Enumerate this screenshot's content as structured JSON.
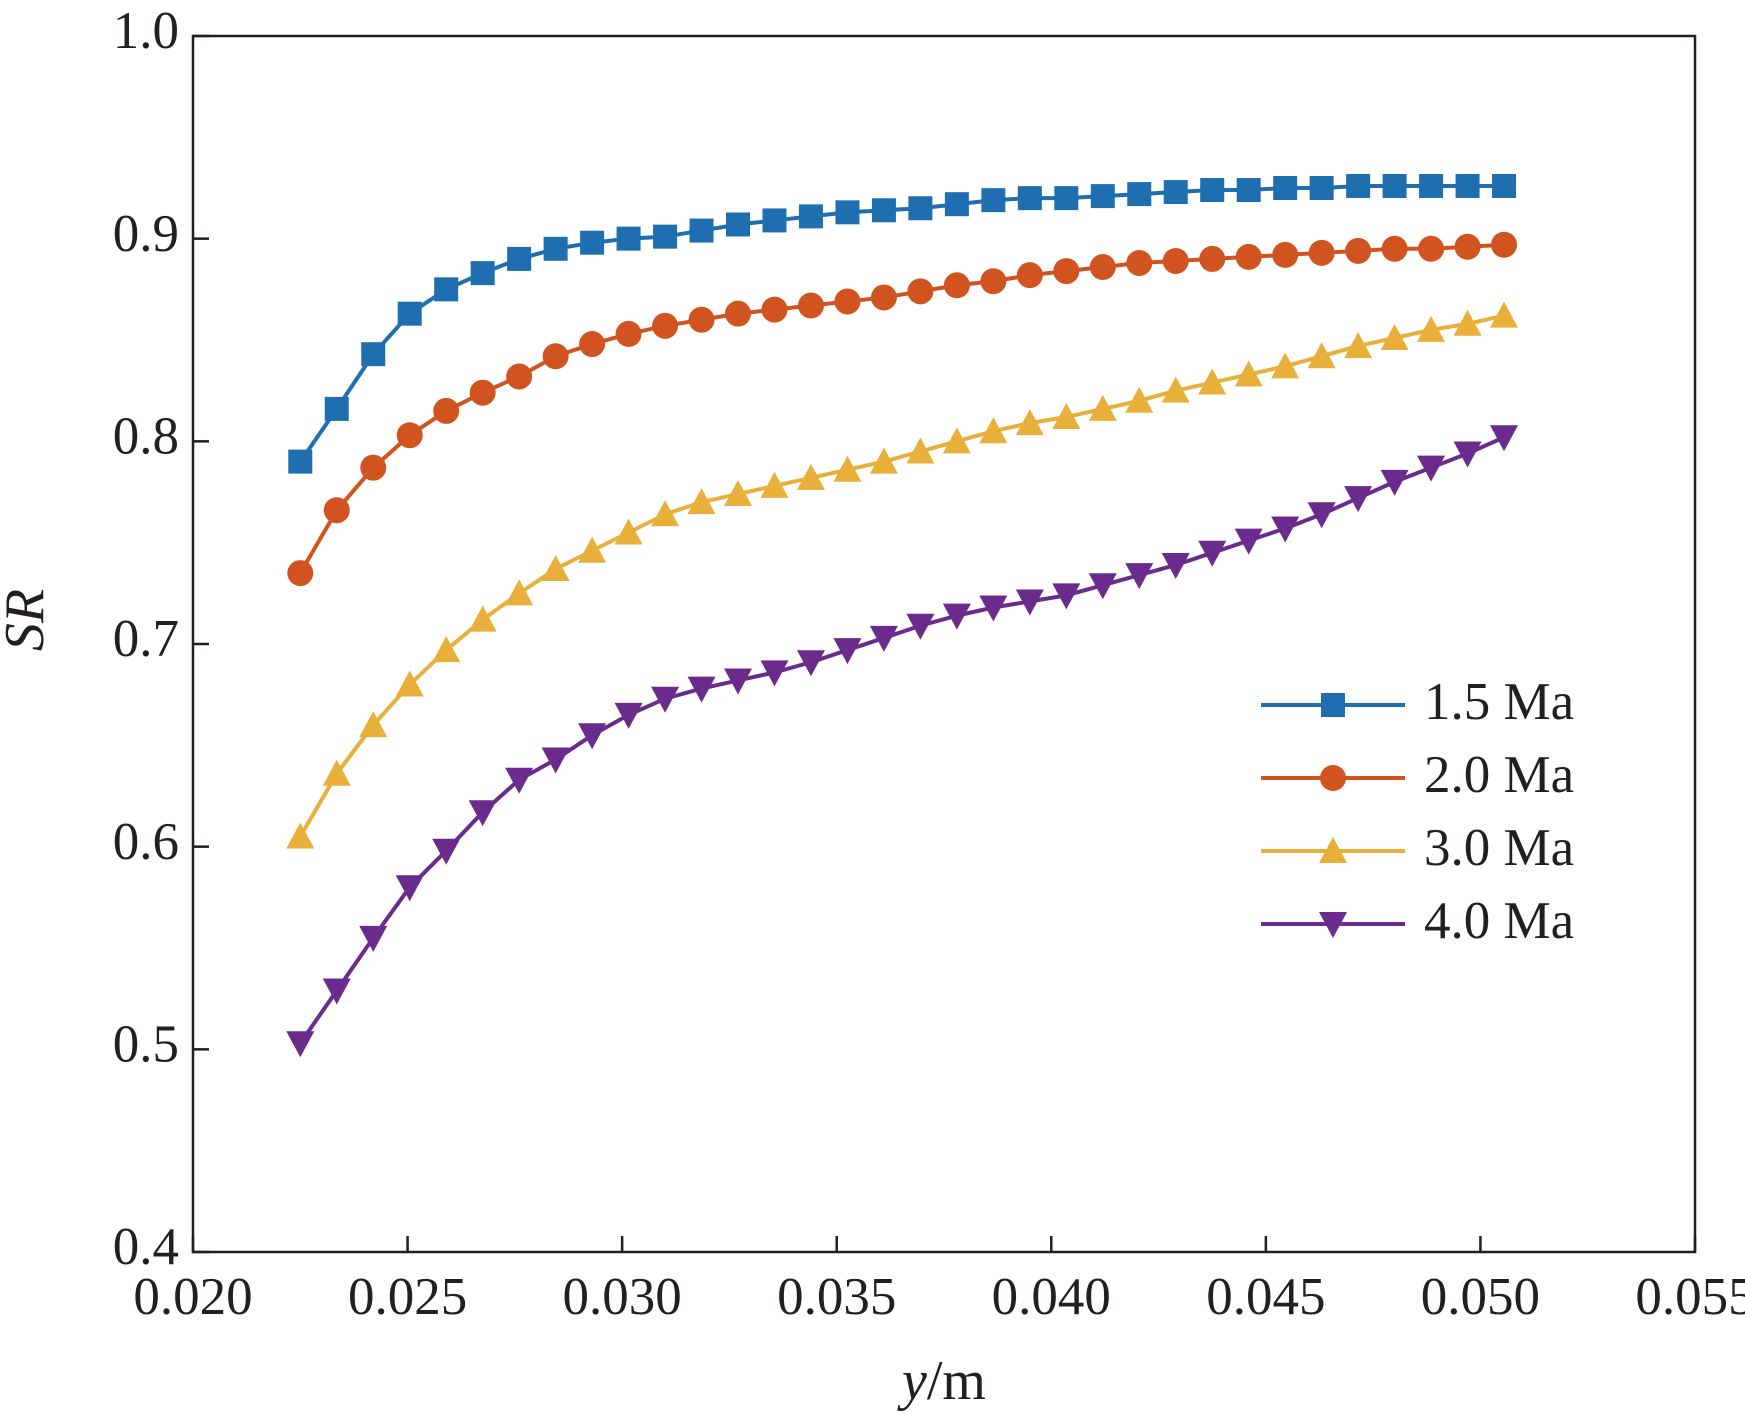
{
  "chart_data": {
    "type": "line",
    "xlabel": "y/m",
    "ylabel": "SR",
    "xlim": [
      0.02,
      0.055
    ],
    "ylim": [
      0.4,
      1.0
    ],
    "xticks": [
      {
        "value": 0.02,
        "label": "0.020"
      },
      0.025,
      {
        "value": 0.03,
        "label": "0.030"
      },
      0.035,
      {
        "value": 0.04,
        "label": "0.040"
      },
      0.045,
      {
        "value": 0.05,
        "label": "0.050"
      },
      0.055
    ],
    "yticks": [
      0.4,
      0.5,
      0.6,
      0.7,
      0.8,
      0.9,
      {
        "value": 1.0,
        "label": "1.0"
      }
    ],
    "legend": "right",
    "x": [
      0.0225,
      0.02335,
      0.0242,
      0.02505,
      0.0259,
      0.02675,
      0.0276,
      0.02845,
      0.0293,
      0.03015,
      0.031,
      0.03185,
      0.0327,
      0.03355,
      0.0344,
      0.03525,
      0.0361,
      0.03695,
      0.0378,
      0.03865,
      0.0395,
      0.04035,
      0.0412,
      0.04205,
      0.0429,
      0.04375,
      0.0446,
      0.04545,
      0.0463,
      0.04715,
      0.048,
      0.04885,
      0.0497,
      0.05055
    ],
    "series": [
      {
        "name": "1.5 Ma",
        "color": "#1f6fb0",
        "marker": "square",
        "values": [
          0.79,
          0.816,
          0.843,
          0.863,
          0.875,
          0.883,
          0.89,
          0.895,
          0.898,
          0.9,
          0.901,
          0.904,
          0.907,
          0.909,
          0.911,
          0.913,
          0.914,
          0.915,
          0.917,
          0.919,
          0.92,
          0.92,
          0.921,
          0.922,
          0.923,
          0.924,
          0.924,
          0.925,
          0.925,
          0.926,
          0.926,
          0.926,
          0.926,
          0.926
        ]
      },
      {
        "name": "2.0 Ma",
        "color": "#d1531f",
        "marker": "circle",
        "values": [
          0.735,
          0.766,
          0.787,
          0.803,
          0.815,
          0.824,
          0.832,
          0.842,
          0.848,
          0.853,
          0.857,
          0.86,
          0.863,
          0.865,
          0.867,
          0.869,
          0.871,
          0.874,
          0.877,
          0.879,
          0.882,
          0.884,
          0.886,
          0.888,
          0.889,
          0.89,
          0.891,
          0.892,
          0.893,
          0.894,
          0.895,
          0.895,
          0.896,
          0.897
        ]
      },
      {
        "name": "3.0 Ma",
        "color": "#e8b03a",
        "marker": "triangle-up",
        "values": [
          0.605,
          0.636,
          0.66,
          0.68,
          0.697,
          0.712,
          0.725,
          0.737,
          0.746,
          0.755,
          0.764,
          0.77,
          0.774,
          0.778,
          0.782,
          0.786,
          0.79,
          0.795,
          0.8,
          0.805,
          0.809,
          0.812,
          0.816,
          0.82,
          0.825,
          0.829,
          0.833,
          0.837,
          0.842,
          0.847,
          0.851,
          0.855,
          0.858,
          0.862
        ]
      },
      {
        "name": "4.0 Ma",
        "color": "#6a2b8c",
        "marker": "triangle-down",
        "values": [
          0.503,
          0.529,
          0.555,
          0.58,
          0.598,
          0.617,
          0.633,
          0.643,
          0.655,
          0.665,
          0.673,
          0.678,
          0.682,
          0.686,
          0.691,
          0.697,
          0.703,
          0.709,
          0.714,
          0.718,
          0.721,
          0.724,
          0.729,
          0.734,
          0.739,
          0.745,
          0.751,
          0.757,
          0.764,
          0.772,
          0.78,
          0.787,
          0.794,
          0.802
        ]
      }
    ]
  }
}
